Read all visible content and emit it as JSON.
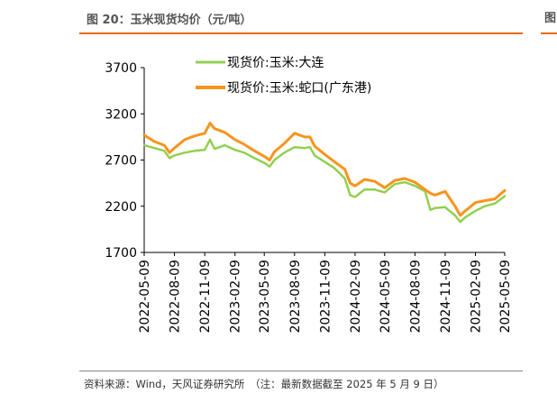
{
  "header": {
    "title": "图 20：玉米现货均价（元/吨）",
    "next_panel_fragment": "图"
  },
  "footer": {
    "source": "资料来源：Wind，天风证券研究所　（注：最新数据截至 2025 年 5 月 9 日）"
  },
  "colors": {
    "accent": "#e46c0a",
    "series_dalian": "#92d050",
    "series_shekou": "#f7941d"
  },
  "chart_data": {
    "type": "line",
    "title": "",
    "xlabel": "",
    "ylabel": "",
    "ylim": [
      1700,
      3700
    ],
    "yticks": [
      1700,
      2200,
      2700,
      3200,
      3700
    ],
    "xlim": [
      "2022-05-09",
      "2025-05-09"
    ],
    "xticks": [
      "2022-05-09",
      "2022-08-09",
      "2022-11-09",
      "2023-02-09",
      "2023-05-09",
      "2023-08-09",
      "2023-11-09",
      "2024-02-09",
      "2024-05-09",
      "2024-08-09",
      "2024-11-09",
      "2025-02-09",
      "2025-05-09"
    ],
    "grid": false,
    "legend": "top-left",
    "series": [
      {
        "name": "现货价:玉米:大连",
        "color": "#92d050",
        "points": [
          [
            "2022-05-09",
            2860
          ],
          [
            "2022-06-09",
            2830
          ],
          [
            "2022-07-09",
            2800
          ],
          [
            "2022-07-25",
            2720
          ],
          [
            "2022-08-09",
            2750
          ],
          [
            "2022-09-09",
            2780
          ],
          [
            "2022-10-09",
            2800
          ],
          [
            "2022-11-09",
            2810
          ],
          [
            "2022-11-25",
            2920
          ],
          [
            "2022-12-09",
            2820
          ],
          [
            "2023-01-09",
            2860
          ],
          [
            "2023-02-09",
            2810
          ],
          [
            "2023-03-09",
            2780
          ],
          [
            "2023-04-09",
            2720
          ],
          [
            "2023-05-09",
            2670
          ],
          [
            "2023-05-25",
            2630
          ],
          [
            "2023-06-09",
            2700
          ],
          [
            "2023-07-09",
            2780
          ],
          [
            "2023-08-09",
            2840
          ],
          [
            "2023-09-09",
            2830
          ],
          [
            "2023-09-25",
            2840
          ],
          [
            "2023-10-09",
            2750
          ],
          [
            "2023-11-09",
            2680
          ],
          [
            "2023-12-09",
            2610
          ],
          [
            "2024-01-09",
            2500
          ],
          [
            "2024-01-25",
            2320
          ],
          [
            "2024-02-09",
            2300
          ],
          [
            "2024-03-09",
            2380
          ],
          [
            "2024-04-09",
            2380
          ],
          [
            "2024-05-09",
            2350
          ],
          [
            "2024-06-09",
            2440
          ],
          [
            "2024-07-09",
            2460
          ],
          [
            "2024-08-09",
            2420
          ],
          [
            "2024-09-09",
            2360
          ],
          [
            "2024-09-25",
            2160
          ],
          [
            "2024-10-09",
            2180
          ],
          [
            "2024-11-09",
            2190
          ],
          [
            "2024-12-09",
            2100
          ],
          [
            "2024-12-25",
            2030
          ],
          [
            "2025-01-09",
            2080
          ],
          [
            "2025-02-09",
            2150
          ],
          [
            "2025-03-09",
            2200
          ],
          [
            "2025-04-09",
            2230
          ],
          [
            "2025-05-09",
            2310
          ]
        ]
      },
      {
        "name": "现货价:玉米:蛇口(广东港)",
        "color": "#f7941d",
        "points": [
          [
            "2022-05-09",
            2970
          ],
          [
            "2022-06-09",
            2900
          ],
          [
            "2022-07-09",
            2860
          ],
          [
            "2022-07-25",
            2780
          ],
          [
            "2022-08-09",
            2830
          ],
          [
            "2022-09-09",
            2920
          ],
          [
            "2022-10-09",
            2960
          ],
          [
            "2022-11-09",
            2990
          ],
          [
            "2022-11-25",
            3100
          ],
          [
            "2022-12-09",
            3040
          ],
          [
            "2023-01-09",
            3000
          ],
          [
            "2023-02-09",
            2920
          ],
          [
            "2023-03-09",
            2870
          ],
          [
            "2023-04-09",
            2800
          ],
          [
            "2023-05-09",
            2740
          ],
          [
            "2023-05-25",
            2700
          ],
          [
            "2023-06-09",
            2790
          ],
          [
            "2023-07-09",
            2880
          ],
          [
            "2023-08-09",
            2990
          ],
          [
            "2023-09-09",
            2950
          ],
          [
            "2023-09-25",
            2950
          ],
          [
            "2023-10-09",
            2850
          ],
          [
            "2023-11-09",
            2760
          ],
          [
            "2023-12-09",
            2680
          ],
          [
            "2024-01-09",
            2600
          ],
          [
            "2024-01-25",
            2450
          ],
          [
            "2024-02-09",
            2420
          ],
          [
            "2024-03-09",
            2490
          ],
          [
            "2024-04-09",
            2470
          ],
          [
            "2024-05-09",
            2400
          ],
          [
            "2024-06-09",
            2480
          ],
          [
            "2024-07-09",
            2500
          ],
          [
            "2024-08-09",
            2460
          ],
          [
            "2024-09-09",
            2380
          ],
          [
            "2024-09-25",
            2340
          ],
          [
            "2024-10-09",
            2320
          ],
          [
            "2024-11-09",
            2360
          ],
          [
            "2024-12-09",
            2200
          ],
          [
            "2024-12-25",
            2100
          ],
          [
            "2025-01-09",
            2150
          ],
          [
            "2025-02-09",
            2240
          ],
          [
            "2025-03-09",
            2260
          ],
          [
            "2025-04-09",
            2280
          ],
          [
            "2025-05-09",
            2370
          ]
        ]
      }
    ]
  }
}
